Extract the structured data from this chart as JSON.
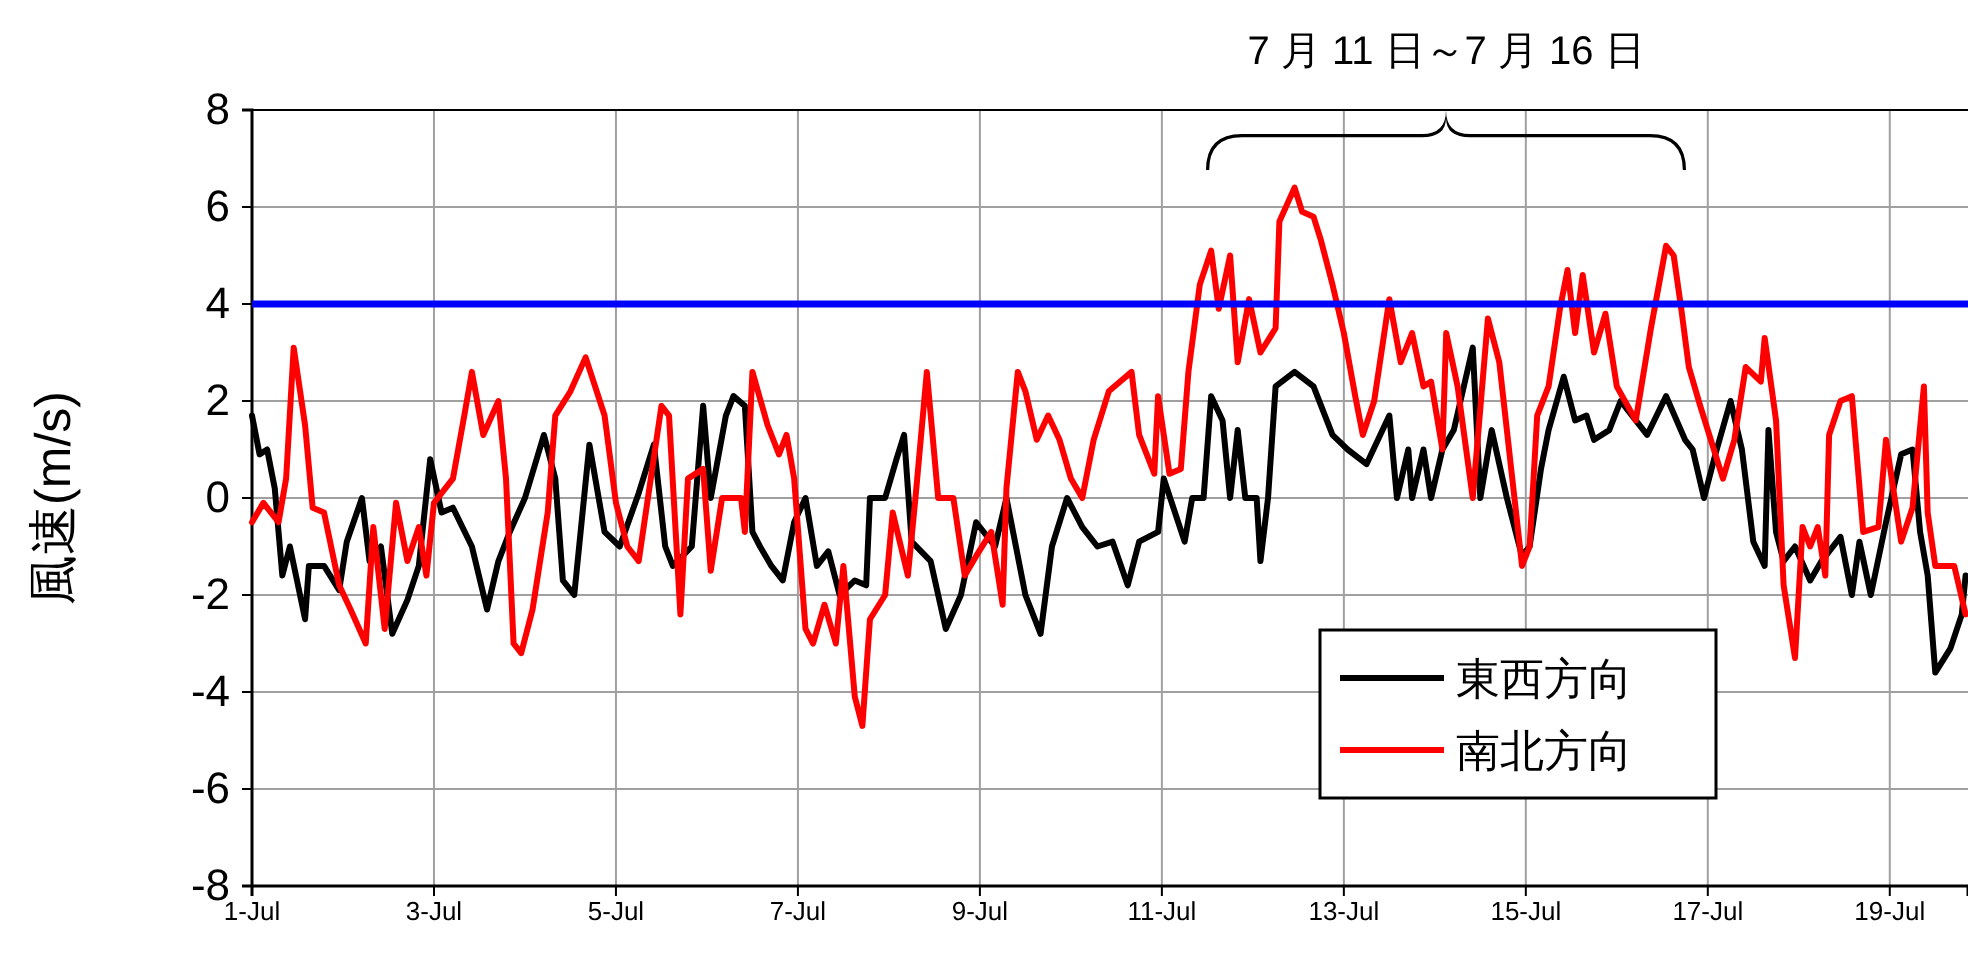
{
  "chart_data": {
    "type": "line",
    "ylabel": "風速(m/s)",
    "annotations": [
      "7 月 11 日～7 月 16 日"
    ],
    "xlim": [
      "--07-01",
      "--07-19T20:38"
    ],
    "ylim": [
      -8,
      8
    ],
    "yticks": [
      -8,
      -6,
      -4,
      -2,
      0,
      2,
      4,
      6,
      8
    ],
    "xticks": [
      {
        "value": "--07-01",
        "label": "1-Jul"
      },
      {
        "value": "--07-03",
        "label": "3-Jul"
      },
      {
        "value": "--07-05",
        "label": "5-Jul"
      },
      {
        "value": "--07-07",
        "label": "7-Jul"
      },
      {
        "value": "--07-09",
        "label": "9-Jul"
      },
      {
        "value": "--07-11",
        "label": "11-Jul"
      },
      {
        "value": "--07-13",
        "label": "13-Jul"
      },
      {
        "value": "--07-15",
        "label": "15-Jul"
      },
      {
        "value": "--07-17",
        "label": "17-Jul"
      },
      {
        "value": "--07-19",
        "label": "19-Jul"
      }
    ],
    "grid": true,
    "legend": "bottom right",
    "line_style": "solid",
    "marker": "none",
    "ref_lines": [
      {
        "axis": "y",
        "value": 4,
        "color": "#0000ff"
      }
    ],
    "series": [
      {
        "name": "東西方向",
        "color": "#000000",
        "x": [
          "--07-01T00:00",
          "--07-01T02:00",
          "--07-01T04:00",
          "--07-01T06:00",
          "--07-01T08:00",
          "--07-01T10:00",
          "--07-01T14:00",
          "--07-01T15:00",
          "--07-01T19:00",
          "--07-01T23:00",
          "--07-02T01:00",
          "--07-02T05:00",
          "--07-02T07:00",
          "--07-02T10:00",
          "--07-02T13:00",
          "--07-02T17:00",
          "--07-02T20:00",
          "--07-02T23:00",
          "--07-03T02:00",
          "--07-03T05:00",
          "--07-03T10:00",
          "--07-03T14:00",
          "--07-03T17:00",
          "--07-03T20:00",
          "--07-04T00:00",
          "--07-04T05:00",
          "--07-04T08:00",
          "--07-04T10:00",
          "--07-04T13:00",
          "--07-04T17:00",
          "--07-04T21:00",
          "--07-05T01:00",
          "--07-05T06:00",
          "--07-05T10:00",
          "--07-05T13:00",
          "--07-05T15:00",
          "--07-05T20:00",
          "--07-05T23:00",
          "--07-06T01:00",
          "--07-06T05:00",
          "--07-06T07:00",
          "--07-06T10:00",
          "--07-06T12:00",
          "--07-06T14:00",
          "--07-06T17:00",
          "--07-06T20:00",
          "--07-06T23:00",
          "--07-07T02:00",
          "--07-07T05:00",
          "--07-07T08:00",
          "--07-07T11:00",
          "--07-07T15:00",
          "--07-07T18:00",
          "--07-07T19:00",
          "--07-07T23:00",
          "--07-08T02:00",
          "--07-08T04:00",
          "--07-08T06:00",
          "--07-08T11:00",
          "--07-08T15:00",
          "--07-08T19:00",
          "--07-08T23:00",
          "--07-09T04:00",
          "--07-09T07:00",
          "--07-09T12:00",
          "--07-09T16:00",
          "--07-09T19:00",
          "--07-09T23:00",
          "--07-10T03:00",
          "--07-10T07:00",
          "--07-10T11:00",
          "--07-10T15:00",
          "--07-10T18:00",
          "--07-10T23:00",
          "--07-11T00:30",
          "--07-11T06:00",
          "--07-11T08:00",
          "--07-11T11:00",
          "--07-11T13:00",
          "--07-11T16:00",
          "--07-11T18:00",
          "--07-11T20:00",
          "--07-11T22:00",
          "--07-12T01:00",
          "--07-12T02:00",
          "--07-12T04:00",
          "--07-12T06:00",
          "--07-12T11:00",
          "--07-12T16:00",
          "--07-12T21:00",
          "--07-13T01:00",
          "--07-13T06:00",
          "--07-13T12:00",
          "--07-13T14:00",
          "--07-13T17:00",
          "--07-13T18:00",
          "--07-13T21:00",
          "--07-13T23:00",
          "--07-14T02:00",
          "--07-14T05:00",
          "--07-14T10:00",
          "--07-14T12:00",
          "--07-14T15:00",
          "--07-14T19:00",
          "--07-14T23:00",
          "--07-15T01:00",
          "--07-15T04:00",
          "--07-15T06:00",
          "--07-15T10:00",
          "--07-15T13:00",
          "--07-15T16:00",
          "--07-15T18:00",
          "--07-15T22:00",
          "--07-16T01:00",
          "--07-16T05:00",
          "--07-16T08:00",
          "--07-16T13:00",
          "--07-16T18:00",
          "--07-16T20:00",
          "--07-16T23:00",
          "--07-17T02:00",
          "--07-17T06:00",
          "--07-17T09:00",
          "--07-17T12:00",
          "--07-17T15:00",
          "--07-17T16:00",
          "--07-17T18:00",
          "--07-17T20:00",
          "--07-17T23:00",
          "--07-18T03:00",
          "--07-18T06:00",
          "--07-18T11:00",
          "--07-18T14:00",
          "--07-18T16:00",
          "--07-18T19:00",
          "--07-18T23:00",
          "--07-19T03:00",
          "--07-19T06:00",
          "--07-19T08:00",
          "--07-19T10:00",
          "--07-19T12:00",
          "--07-19T16:00",
          "--07-19T19:00",
          "--07-19T20:00"
        ],
        "values": [
          1.7,
          0.9,
          1.0,
          0.2,
          -1.6,
          -1.0,
          -2.5,
          -1.4,
          -1.4,
          -1.9,
          -0.9,
          0,
          -1.3,
          -1.0,
          -2.8,
          -2.1,
          -1.4,
          0.8,
          -0.3,
          -0.2,
          -1.0,
          -2.3,
          -1.3,
          -0.7,
          0,
          1.3,
          0.4,
          -1.7,
          -2.0,
          1.1,
          -0.7,
          -1.0,
          0.1,
          1.1,
          -1.0,
          -1.4,
          -1.0,
          1.9,
          0,
          1.7,
          2.1,
          1.9,
          -0.7,
          -1.0,
          -1.4,
          -1.7,
          -0.5,
          0,
          -1.4,
          -1.1,
          -2.0,
          -1.7,
          -1.8,
          0,
          0,
          0.8,
          1.3,
          -0.9,
          -1.3,
          -2.7,
          -2.0,
          -0.5,
          -1.0,
          0,
          -2.0,
          -2.8,
          -1.0,
          0,
          -0.6,
          -1.0,
          -0.9,
          -1.8,
          -0.9,
          -0.7,
          0.4,
          -0.9,
          0,
          0,
          2.1,
          1.6,
          0,
          1.4,
          0,
          0,
          -1.3,
          0,
          2.3,
          2.6,
          2.3,
          1.3,
          1.0,
          0.7,
          1.7,
          0,
          1.0,
          0,
          1.0,
          0,
          1.0,
          1.4,
          3.1,
          0,
          1.4,
          0,
          -1.2,
          -1.0,
          0.6,
          1.4,
          2.5,
          1.6,
          1.7,
          1.2,
          1.4,
          2.0,
          1.6,
          1.3,
          2.1,
          1.2,
          1.0,
          0,
          0.9,
          2.0,
          1.0,
          -0.9,
          -1.4,
          1.4,
          -0.7,
          -1.3,
          -1.0,
          -1.7,
          -1.3,
          -0.8,
          -2.0,
          -0.9,
          -2.0,
          -0.5,
          0.9,
          1.0,
          -0.7,
          -1.6,
          -3.6,
          -3.1,
          -2.4,
          -1.6
        ]
      },
      {
        "name": "南北方向",
        "color": "#ff0000",
        "x": [
          "--07-01T00:00",
          "--07-01T03:00",
          "--07-01T07:00",
          "--07-01T09:00",
          "--07-01T11:00",
          "--07-01T14:00",
          "--07-01T16:00",
          "--07-01T19:00",
          "--07-01T23:00",
          "--07-02T02:00",
          "--07-02T06:00",
          "--07-02T08:00",
          "--07-02T11:00",
          "--07-02T14:00",
          "--07-02T17:00",
          "--07-02T20:00",
          "--07-02T22:00",
          "--07-03T00:00",
          "--07-03T05:00",
          "--07-03T08:00",
          "--07-03T10:00",
          "--07-03T13:00",
          "--07-03T17:00",
          "--07-03T19:00",
          "--07-03T21:00",
          "--07-03T23:00",
          "--07-04T02:00",
          "--07-04T06:00",
          "--07-04T08:00",
          "--07-04T12:00",
          "--07-04T16:00",
          "--07-04T21:00",
          "--07-05T00:00",
          "--07-05T03:00",
          "--07-05T06:00",
          "--07-05T12:00",
          "--07-05T14:00",
          "--07-05T17:00",
          "--07-05T19:00",
          "--07-05T23:00",
          "--07-06T01:00",
          "--07-06T04:00",
          "--07-06T09:00",
          "--07-06T10:00",
          "--07-06T12:00",
          "--07-06T16:00",
          "--07-06T19:00",
          "--07-06T21:00",
          "--07-06T23:00",
          "--07-07T02:00",
          "--07-07T04:00",
          "--07-07T07:00",
          "--07-07T10:00",
          "--07-07T12:00",
          "--07-07T15:00",
          "--07-07T17:00",
          "--07-07T19:00",
          "--07-07T23:00",
          "--07-08T01:00",
          "--07-08T05:00",
          "--07-08T07:00",
          "--07-08T10:00",
          "--07-08T13:00",
          "--07-08T17:00",
          "--07-08T20:00",
          "--07-08T23:00",
          "--07-09T03:00",
          "--07-09T06:00",
          "--07-09T07:00",
          "--07-09T10:00",
          "--07-09T12:00",
          "--07-09T15:00",
          "--07-09T18:00",
          "--07-09T21:00",
          "--07-10T00:00",
          "--07-10T03:00",
          "--07-10T06:00",
          "--07-10T10:00",
          "--07-10T16:00",
          "--07-10T18:00",
          "--07-10T22:00",
          "--07-10T23:00",
          "--07-11T02:00",
          "--07-11T05:00",
          "--07-11T07:00",
          "--07-11T10:00",
          "--07-11T13:00",
          "--07-11T15:00",
          "--07-11T18:00",
          "--07-11T20:00",
          "--07-11T23:00",
          "--07-12T02:00",
          "--07-12T06:00",
          "--07-12T07:00",
          "--07-12T11:00",
          "--07-12T13:00",
          "--07-12T16:00",
          "--07-12T18:00",
          "--07-12T21:00",
          "--07-13T00:00",
          "--07-13T03:00",
          "--07-13T05:00",
          "--07-13T08:00",
          "--07-13T12:00",
          "--07-13T15:00",
          "--07-13T18:00",
          "--07-13T21:00",
          "--07-13T23:00",
          "--07-14T02:00",
          "--07-14T03:00",
          "--07-14T06:00",
          "--07-14T10:00",
          "--07-14T14:00",
          "--07-14T17:00",
          "--07-14T21:00",
          "--07-14T23:00",
          "--07-15T01:00",
          "--07-15T03:00",
          "--07-15T06:00",
          "--07-15T09:00",
          "--07-15T11:00",
          "--07-15T13:00",
          "--07-15T15:00",
          "--07-15T18:00",
          "--07-15T21:00",
          "--07-16T00:00",
          "--07-16T05:00",
          "--07-16T09:00",
          "--07-16T13:00",
          "--07-16T15:00",
          "--07-16T17:00",
          "--07-16T19:00",
          "--07-16T22:00",
          "--07-17T02:00",
          "--07-17T04:00",
          "--07-17T07:00",
          "--07-17T10:00",
          "--07-17T14:00",
          "--07-17T15:00",
          "--07-17T18:00",
          "--07-17T20:00",
          "--07-17T23:00",
          "--07-18T01:00",
          "--07-18T03:00",
          "--07-18T05:00",
          "--07-18T07:00",
          "--07-18T08:00",
          "--07-18T11:00",
          "--07-18T14:00",
          "--07-18T17:00",
          "--07-18T21:00",
          "--07-18T23:00",
          "--07-19T03:00",
          "--07-19T06:00",
          "--07-19T09:00",
          "--07-19T10:00",
          "--07-19T12:00",
          "--07-19T17:00",
          "--07-19T20:00"
        ],
        "values": [
          -0.5,
          -0.1,
          -0.5,
          0.4,
          3.1,
          1.5,
          -0.2,
          -0.3,
          -1.8,
          -2.3,
          -3.0,
          -0.6,
          -2.7,
          -0.1,
          -1.3,
          -0.6,
          -1.6,
          -0.1,
          0.4,
          1.7,
          2.6,
          1.3,
          2.0,
          0.4,
          -3.0,
          -3.2,
          -2.3,
          -0.3,
          1.7,
          2.2,
          2.9,
          1.7,
          -0.1,
          -1.0,
          -1.3,
          1.9,
          1.7,
          -2.4,
          0.4,
          0.6,
          -1.5,
          0,
          0,
          -0.7,
          2.6,
          1.5,
          0.9,
          1.3,
          0.4,
          -2.7,
          -3.0,
          -2.2,
          -3.0,
          -1.4,
          -4.1,
          -4.7,
          -2.5,
          -2.0,
          -0.3,
          -1.6,
          0,
          2.6,
          0,
          0,
          -1.6,
          -1.2,
          -0.7,
          -2.2,
          0.2,
          2.6,
          2.2,
          1.2,
          1.7,
          1.2,
          0.4,
          0,
          1.2,
          2.2,
          2.6,
          1.3,
          0.5,
          2.1,
          0.5,
          0.6,
          2.6,
          4.4,
          5.1,
          3.9,
          5.0,
          2.8,
          4.1,
          3.0,
          3.5,
          5.7,
          6.4,
          5.9,
          5.8,
          5.3,
          4.4,
          3.4,
          2.1,
          1.3,
          2.0,
          4.1,
          2.8,
          3.4,
          2.3,
          2.4,
          1.0,
          3.4,
          2.3,
          0,
          3.7,
          2.8,
          0,
          -1.4,
          -1.0,
          1.7,
          2.3,
          3.9,
          4.7,
          3.4,
          4.6,
          3.0,
          3.8,
          2.3,
          1.6,
          3.5,
          5.2,
          5.0,
          3.9,
          2.7,
          1.9,
          0.9,
          0.4,
          1.2,
          2.7,
          2.4,
          3.3,
          1.6,
          -1.8,
          -3.3,
          -0.6,
          -1.0,
          -0.6,
          -1.6,
          1.3,
          2.0,
          2.1,
          -0.7,
          -0.6,
          1.2,
          -0.9,
          -0.2,
          2.3,
          -0.3,
          -1.4,
          -1.4,
          -2.4
        ]
      }
    ]
  }
}
